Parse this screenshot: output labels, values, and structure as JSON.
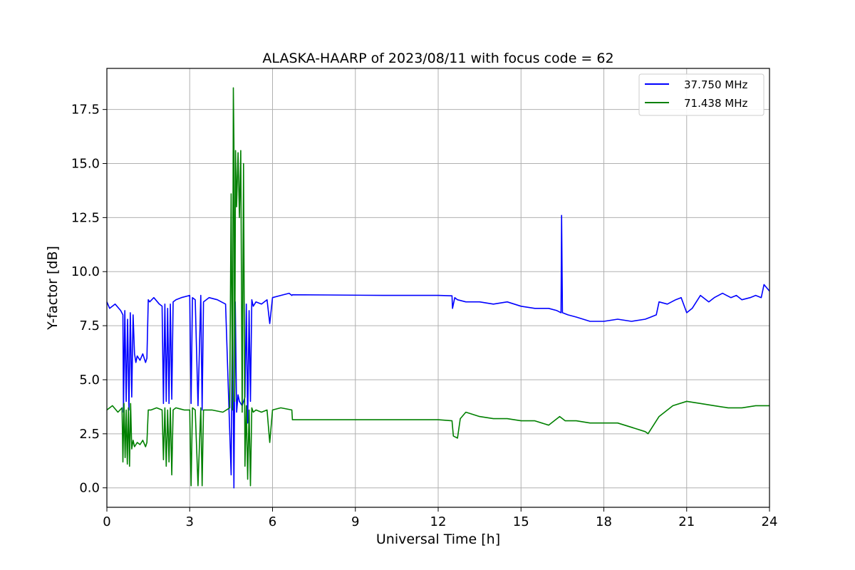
{
  "chart_data": {
    "type": "line",
    "title": "ALASKA-HAARP of 2023/08/11 with focus code = 62",
    "xlabel": "Universal Time [h]",
    "ylabel": "Y-factor [dB]",
    "xlim": [
      0,
      24
    ],
    "ylim": [
      -0.9,
      19.4
    ],
    "xticks": [
      0,
      3,
      6,
      9,
      12,
      15,
      18,
      21,
      24
    ],
    "yticks": [
      0.0,
      2.5,
      5.0,
      7.5,
      10.0,
      12.5,
      15.0,
      17.5
    ],
    "xtick_labels": [
      "0",
      "3",
      "6",
      "9",
      "12",
      "15",
      "18",
      "21",
      "24"
    ],
    "ytick_labels": [
      "0.0",
      "2.5",
      "5.0",
      "7.5",
      "10.0",
      "12.5",
      "15.0",
      "17.5"
    ],
    "grid": true,
    "legend_position": "top-right",
    "series": [
      {
        "name": "37.750 MHz",
        "color": "#0000ff",
        "x": [
          0,
          0.1,
          0.3,
          0.5,
          0.58,
          0.6,
          0.65,
          0.7,
          0.75,
          0.8,
          0.85,
          0.9,
          0.95,
          1.0,
          1.05,
          1.1,
          1.2,
          1.3,
          1.4,
          1.45,
          1.5,
          1.55,
          1.7,
          1.9,
          2.0,
          2.05,
          2.1,
          2.15,
          2.2,
          2.25,
          2.3,
          2.35,
          2.4,
          2.5,
          2.7,
          3.0,
          3.05,
          3.1,
          3.2,
          3.3,
          3.4,
          3.45,
          3.5,
          3.7,
          4.0,
          4.3,
          4.5,
          4.55,
          4.6,
          4.65,
          4.7,
          4.75,
          4.8,
          4.9,
          5.0,
          5.05,
          5.1,
          5.15,
          5.2,
          5.25,
          5.3,
          5.4,
          5.6,
          5.8,
          5.9,
          6.0,
          6.3,
          6.6,
          6.7,
          6.72,
          8.0,
          10.0,
          12.0,
          12.5,
          12.52,
          12.6,
          12.7,
          13.0,
          13.5,
          14.0,
          14.5,
          15.0,
          15.5,
          16.0,
          16.3,
          16.45,
          16.47,
          16.5,
          16.7,
          17.0,
          17.5,
          18.0,
          18.5,
          19.0,
          19.5,
          19.7,
          19.9,
          20.0,
          20.3,
          20.6,
          20.8,
          21.0,
          21.2,
          21.5,
          21.8,
          22.0,
          22.3,
          22.6,
          22.8,
          23.0,
          23.3,
          23.5,
          23.7,
          23.8,
          24.0
        ],
        "values": [
          8.6,
          8.3,
          8.5,
          8.2,
          8.0,
          3.5,
          8.2,
          4.0,
          7.8,
          3.6,
          8.1,
          4.2,
          8.0,
          6.2,
          5.8,
          6.1,
          5.9,
          6.2,
          5.8,
          6.0,
          8.7,
          8.6,
          8.8,
          8.5,
          8.4,
          3.9,
          8.5,
          4.0,
          8.3,
          3.9,
          8.5,
          4.1,
          8.6,
          8.7,
          8.8,
          8.9,
          3.9,
          8.8,
          8.7,
          3.8,
          8.9,
          3.6,
          8.6,
          8.8,
          8.7,
          8.5,
          0.6,
          8.9,
          0.0,
          8.6,
          3.5,
          4.3,
          4.0,
          3.8,
          4.2,
          8.5,
          3.0,
          8.2,
          4.0,
          8.7,
          8.4,
          8.6,
          8.5,
          8.7,
          7.6,
          8.8,
          8.9,
          9.0,
          8.9,
          8.93,
          8.92,
          8.9,
          8.9,
          8.88,
          8.3,
          8.8,
          8.7,
          8.6,
          8.6,
          8.5,
          8.6,
          8.4,
          8.3,
          8.3,
          8.2,
          8.1,
          12.6,
          8.1,
          8.0,
          7.9,
          7.7,
          7.7,
          7.8,
          7.7,
          7.8,
          7.9,
          8.0,
          8.6,
          8.5,
          8.7,
          8.8,
          8.1,
          8.3,
          8.9,
          8.6,
          8.8,
          9.0,
          8.8,
          8.9,
          8.7,
          8.8,
          8.9,
          8.8,
          9.4,
          9.1
        ]
      },
      {
        "name": "71.438 MHz",
        "color": "#008000",
        "x": [
          0,
          0.2,
          0.4,
          0.55,
          0.58,
          0.62,
          0.66,
          0.7,
          0.74,
          0.78,
          0.82,
          0.86,
          0.9,
          0.95,
          1.0,
          1.1,
          1.2,
          1.3,
          1.4,
          1.45,
          1.5,
          1.6,
          1.8,
          2.0,
          2.05,
          2.1,
          2.15,
          2.2,
          2.25,
          2.3,
          2.35,
          2.4,
          2.5,
          2.8,
          3.0,
          3.05,
          3.1,
          3.2,
          3.3,
          3.4,
          3.45,
          3.5,
          3.8,
          4.2,
          4.45,
          4.5,
          4.55,
          4.58,
          4.6,
          4.63,
          4.66,
          4.7,
          4.75,
          4.8,
          4.85,
          4.9,
          4.95,
          5.0,
          5.05,
          5.1,
          5.15,
          5.2,
          5.25,
          5.3,
          5.4,
          5.6,
          5.8,
          5.9,
          6.0,
          6.3,
          6.7,
          6.72,
          8.0,
          10.0,
          12.0,
          12.5,
          12.55,
          12.7,
          12.8,
          13.0,
          13.5,
          14.0,
          14.5,
          15.0,
          15.5,
          16.0,
          16.4,
          16.6,
          17.0,
          17.5,
          18.0,
          18.5,
          19.0,
          19.5,
          19.6,
          20.0,
          20.5,
          21.0,
          21.5,
          22.0,
          22.5,
          23.0,
          23.5,
          24.0
        ],
        "values": [
          3.6,
          3.8,
          3.5,
          3.7,
          1.2,
          3.9,
          1.4,
          3.6,
          1.1,
          3.7,
          1.0,
          3.9,
          1.8,
          2.2,
          1.9,
          2.1,
          2.0,
          2.2,
          1.9,
          2.1,
          3.6,
          3.6,
          3.7,
          3.6,
          1.3,
          3.7,
          1.0,
          3.6,
          1.2,
          3.7,
          0.6,
          3.6,
          3.7,
          3.6,
          3.6,
          0.1,
          3.7,
          3.6,
          0.1,
          3.7,
          0.1,
          3.6,
          3.6,
          3.5,
          3.7,
          13.6,
          3.6,
          18.5,
          16.0,
          4.0,
          15.6,
          13.0,
          15.5,
          12.5,
          15.6,
          3.5,
          15.0,
          1.0,
          3.8,
          0.4,
          3.6,
          0.1,
          3.7,
          3.5,
          3.6,
          3.5,
          3.6,
          2.1,
          3.6,
          3.7,
          3.6,
          3.15,
          3.15,
          3.15,
          3.15,
          3.1,
          2.4,
          2.3,
          3.2,
          3.5,
          3.3,
          3.2,
          3.2,
          3.1,
          3.1,
          2.9,
          3.3,
          3.1,
          3.1,
          3.0,
          3.0,
          3.0,
          2.8,
          2.6,
          2.5,
          3.3,
          3.8,
          4.0,
          3.9,
          3.8,
          3.7,
          3.7,
          3.8,
          3.8
        ]
      }
    ]
  }
}
